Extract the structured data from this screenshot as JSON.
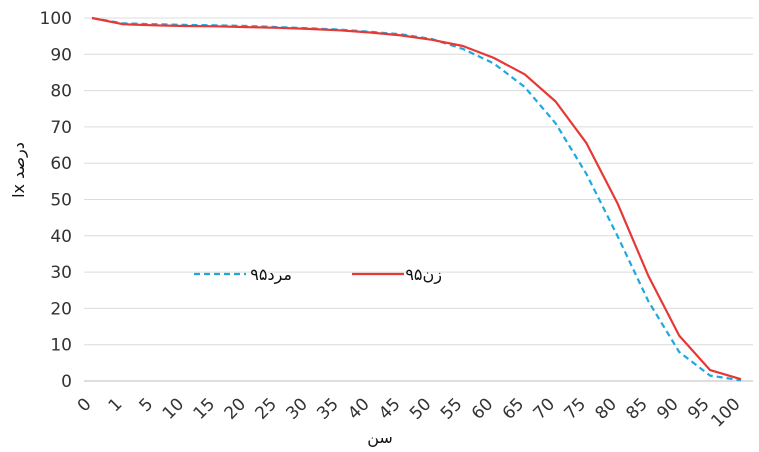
{
  "chart_data": {
    "type": "line",
    "title": "",
    "xlabel": "سن",
    "ylabel": "lx درصد",
    "ylim": [
      0,
      100
    ],
    "yticks": [
      "0",
      "10",
      "20",
      "30",
      "40",
      "50",
      "60",
      "70",
      "80",
      "90",
      "100"
    ],
    "grid": "horizontal",
    "legend_position": "middle-center",
    "categories": [
      "0",
      "1",
      "5",
      "10",
      "15",
      "20",
      "25",
      "30",
      "35",
      "40",
      "45",
      "50",
      "55",
      "60",
      "65",
      "70",
      "75",
      "80",
      "85",
      "90",
      "95",
      "100"
    ],
    "series": [
      {
        "name": "مرد۹۵",
        "color": "#1fa8e0",
        "style": "dashed",
        "values": [
          100,
          98.5,
          98.3,
          98.1,
          98.0,
          97.8,
          97.5,
          97.2,
          96.8,
          96.2,
          95.5,
          94.2,
          91.5,
          87.5,
          81,
          71,
          57,
          40,
          22,
          8,
          1.5,
          0.2
        ]
      },
      {
        "name": "زن۹۵",
        "color": "#e53935",
        "style": "solid",
        "values": [
          100,
          98.3,
          98.0,
          97.8,
          97.7,
          97.5,
          97.3,
          97.0,
          96.6,
          96.0,
          95.2,
          94.0,
          92.3,
          89,
          84.5,
          77,
          65.5,
          49,
          29,
          12.5,
          3,
          0.5
        ]
      }
    ]
  }
}
